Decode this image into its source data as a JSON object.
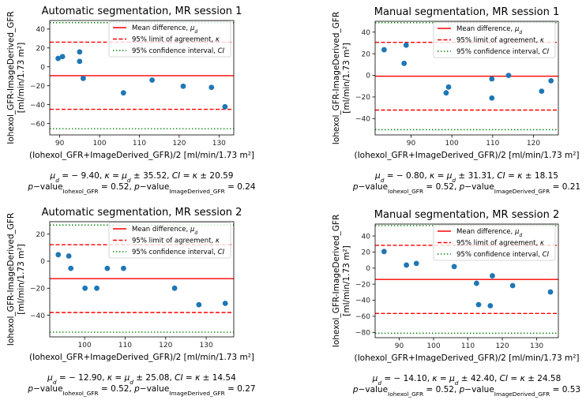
{
  "colors": {
    "points": "#1f77b4",
    "mean": "#ff0000",
    "loa": "#ff0000",
    "ci": "#008000"
  },
  "common": {
    "xlabel": "(Iohexol_GFR+ImageDerived_GFR)/2 [ml/min/1.73 m²]",
    "ylabel_line1": "Iohexol_GFR-ImageDerived_GFR",
    "ylabel_line2": "[ml/min/1.73 m²]",
    "legend": {
      "mean": "Mean difference, ",
      "mean_sym": "μ",
      "mean_sub": "d",
      "loa": "95% limit of agreement, ",
      "loa_sym": "κ",
      "ci": "95% confidence interval, ",
      "ci_sym": "CI"
    },
    "p_label": "p",
    "p_value_word": "−value",
    "p_sub_1": "Iohexol_GFR",
    "p_sub_2": "ImageDerived_GFR"
  },
  "chart_data": [
    {
      "type": "scatter",
      "title": "Automatic segmentation, MR session 1",
      "xlim": [
        87.5,
        133.7
      ],
      "ylim": [
        -72,
        49
      ],
      "xticks": [
        90,
        100,
        110,
        120,
        130
      ],
      "yticks": [
        -60,
        -40,
        -20,
        0,
        20,
        40
      ],
      "mean": -9.4,
      "loa": [
        26.12,
        -44.92
      ],
      "ci": [
        46.71,
        -65.51
      ],
      "x": [
        89.6,
        90.7,
        95.0,
        95.0,
        95.9,
        106.0,
        113.2,
        121.0,
        128.1,
        131.5
      ],
      "y": [
        8.9,
        10.8,
        15.8,
        5.8,
        -12.2,
        -27.5,
        -14.0,
        -20.5,
        -21.7,
        -42.2
      ],
      "stats": {
        "mu_d": "− 9.40",
        "kappa": "35.52",
        "ci": "20.59",
        "p1": "0.52",
        "p2": "0.24"
      }
    },
    {
      "type": "scatter",
      "title": "Manual segmentation, MR session 1",
      "xlim": [
        81.2,
        126.1
      ],
      "ylim": [
        -55.1,
        50
      ],
      "xticks": [
        90,
        100,
        110,
        120
      ],
      "yticks": [
        -40,
        -20,
        0,
        20,
        40
      ],
      "mean": -0.8,
      "loa": [
        30.51,
        -32.11
      ],
      "ci": [
        48.66,
        -50.26
      ],
      "x": [
        83.4,
        88.3,
        88.8,
        98.6,
        99.2,
        109.8,
        109.8,
        113.9,
        122.0,
        124.3
      ],
      "y": [
        23.7,
        11.1,
        27.9,
        -16.2,
        -10.8,
        -3.3,
        -21.0,
        -0.1,
        -14.7,
        -5.0
      ],
      "stats": {
        "mu_d": "− 0.80",
        "kappa": "31.31",
        "ci": "18.15",
        "p1": "0.52",
        "p2": "0.21"
      }
    },
    {
      "type": "scatter",
      "title": "Automatic segmentation, MR session 2",
      "xlim": [
        91.4,
        136.8
      ],
      "ylim": [
        -56,
        29.2
      ],
      "xticks": [
        100,
        110,
        120,
        130
      ],
      "yticks": [
        -40,
        -20,
        0,
        20
      ],
      "mean": -12.9,
      "loa": [
        12.18,
        -37.98
      ],
      "ci": [
        26.72,
        -52.52
      ],
      "x": [
        93.5,
        96.1,
        96.6,
        100.1,
        103.0,
        105.6,
        109.6,
        122.2,
        128.2,
        134.7
      ],
      "y": [
        4.8,
        3.8,
        -5.3,
        -20.0,
        -20.0,
        -5.3,
        -5.3,
        -20.0,
        -32.2,
        -31.2
      ],
      "stats": {
        "mu_d": "− 12.90",
        "kappa": "25.08",
        "ci": "14.54",
        "p1": "0.52",
        "p2": "0.27"
      }
    },
    {
      "type": "scatter",
      "title": "Manual segmentation, MR session 2",
      "xlim": [
        83.0,
        136.3
      ],
      "ylim": [
        -86.6,
        54.8
      ],
      "xticks": [
        90,
        100,
        110,
        120,
        130
      ],
      "yticks": [
        -80,
        -60,
        -40,
        -20,
        0,
        20,
        40
      ],
      "mean": -14.1,
      "loa": [
        28.3,
        -56.5
      ],
      "ci": [
        52.88,
        -81.08
      ],
      "x": [
        85.6,
        92.1,
        95.0,
        106.0,
        112.5,
        113.1,
        116.5,
        117.1,
        123.0,
        134.0
      ],
      "y": [
        20.6,
        3.8,
        5.8,
        1.9,
        -18.9,
        -45.5,
        -46.8,
        -9.6,
        -21.8,
        -29.7
      ],
      "stats": {
        "mu_d": "− 14.10",
        "kappa": "42.40",
        "ci": "24.58",
        "p1": "0.52",
        "p2": "0.53"
      }
    }
  ]
}
